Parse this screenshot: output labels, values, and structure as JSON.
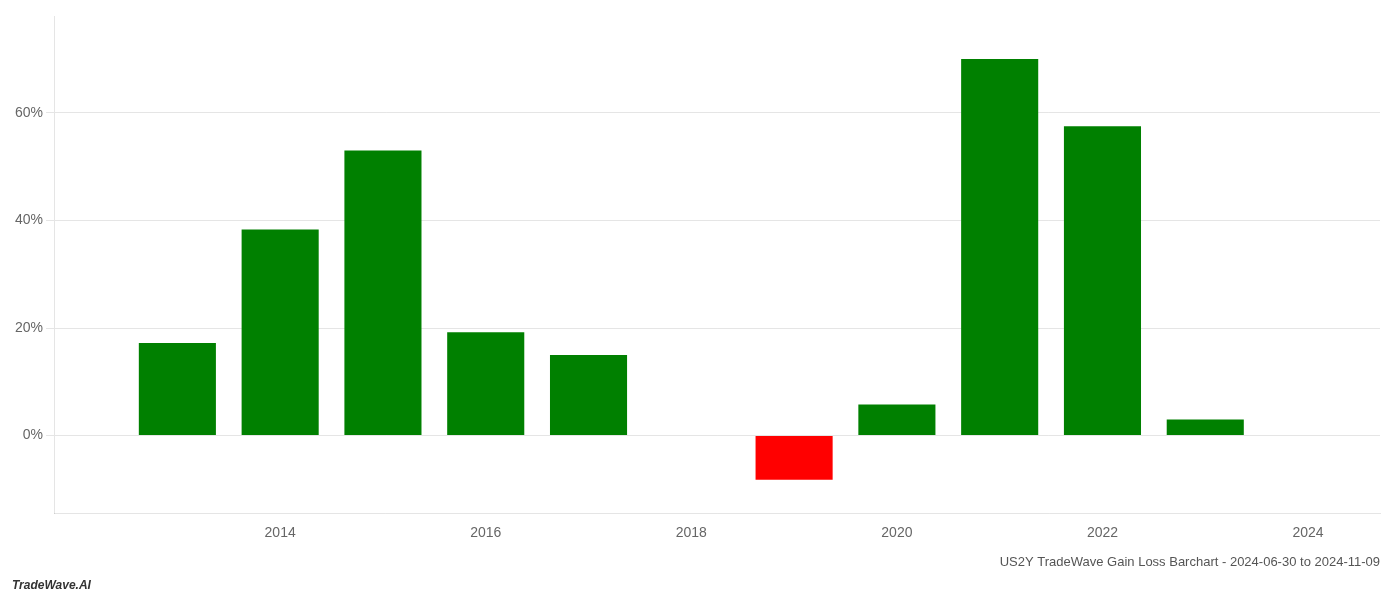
{
  "chart_data": {
    "type": "bar",
    "title": "US2Y TradeWave Gain Loss Barchart - 2024-06-30 to 2024-11-09",
    "annotations": [
      "TradeWave.AI"
    ],
    "x": [
      2013,
      2014,
      2015,
      2016,
      2017,
      2019,
      2020,
      2021,
      2022,
      2023
    ],
    "values": [
      0.172,
      0.383,
      0.53,
      0.192,
      0.15,
      -0.082,
      0.058,
      0.7,
      0.575,
      0.03
    ],
    "colors": [
      "#008000",
      "#008000",
      "#008000",
      "#008000",
      "#008000",
      "#ff0000",
      "#008000",
      "#008000",
      "#008000",
      "#008000"
    ],
    "xlim": [
      2011.8,
      2024.7
    ],
    "ylim": [
      -0.145,
      0.78
    ],
    "xticks": [
      2014,
      2016,
      2018,
      2020,
      2022,
      2024
    ],
    "yticks": [
      {
        "value": 0,
        "label": "0%"
      },
      {
        "value": 0.2,
        "label": "20%"
      },
      {
        "value": 0.4,
        "label": "40%"
      },
      {
        "value": 0.6,
        "label": "60%"
      }
    ],
    "grid": "y"
  }
}
